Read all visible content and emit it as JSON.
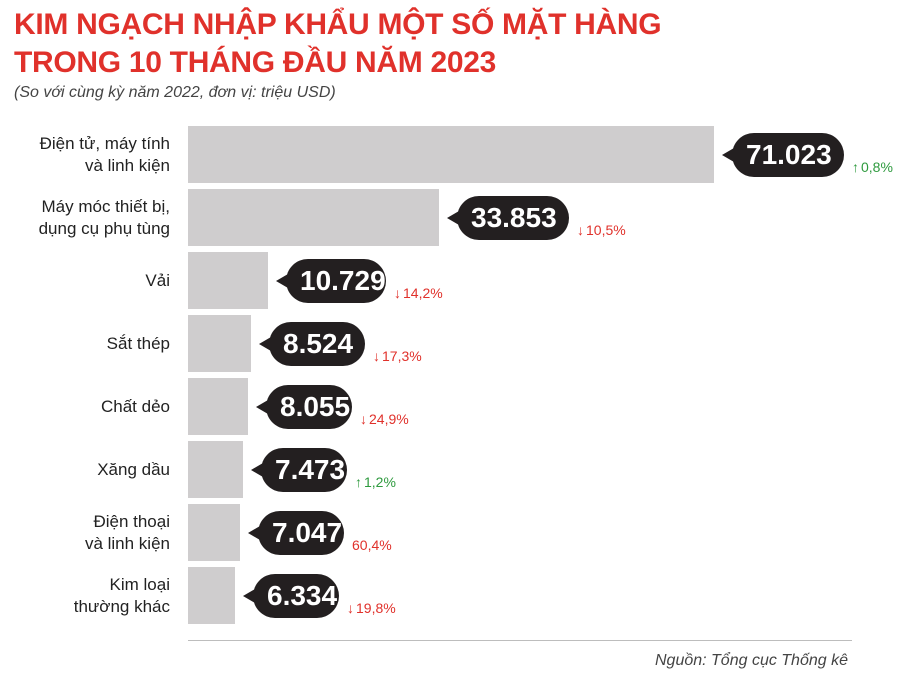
{
  "title_line1": "KIM NGẠCH NHẬP KHẨU MỘT SỐ MẶT HÀNG",
  "title_line2": "TRONG 10 THÁNG ĐẦU NĂM 2023",
  "subtitle": "(So với cùng kỳ năm 2022, đơn vị: triệu USD)",
  "source": "Nguồn: Tổng cục Thống kê",
  "colors": {
    "title": "#e0312b",
    "bar": "#cfcdce",
    "pill": "#231f20",
    "up": "#2e9a3e",
    "down": "#e0312b"
  },
  "chart_data": {
    "type": "bar",
    "orientation": "horizontal",
    "title": "KIM NGẠCH NHẬP KHẨU MỘT SỐ MẶT HÀNG TRONG 10 THÁNG ĐẦU NĂM 2023",
    "subtitle": "(So với cùng kỳ năm 2022, đơn vị: triệu USD)",
    "xlim": [
      0,
      85000
    ],
    "categories": [
      [
        "Điện tử, máy tính",
        "và linh kiện"
      ],
      [
        "Máy móc thiết bị,",
        "dụng cụ phụ tùng"
      ],
      [
        "Vải"
      ],
      [
        "Sắt thép"
      ],
      [
        "Chất dẻo"
      ],
      [
        "Xăng dầu"
      ],
      [
        "Điện thoại",
        "và linh kiện"
      ],
      [
        "Kim loại",
        "thường khác"
      ]
    ],
    "values": [
      71023,
      33853,
      10729,
      8524,
      8055,
      7473,
      7047,
      6334
    ],
    "value_labels": [
      "71.023",
      "33.853",
      "10.729",
      "8.524",
      "8.055",
      "7.473",
      "7.047",
      "6.334"
    ],
    "changes": [
      {
        "text": "0,8%",
        "direction": "up"
      },
      {
        "text": "10,5%",
        "direction": "down"
      },
      {
        "text": "14,2%",
        "direction": "down"
      },
      {
        "text": "17,3%",
        "direction": "down"
      },
      {
        "text": "24,9%",
        "direction": "down"
      },
      {
        "text": "1,2%",
        "direction": "up"
      },
      {
        "text": "60,4%",
        "direction": "none"
      },
      {
        "text": "19,8%",
        "direction": "down"
      }
    ],
    "grid": false
  }
}
